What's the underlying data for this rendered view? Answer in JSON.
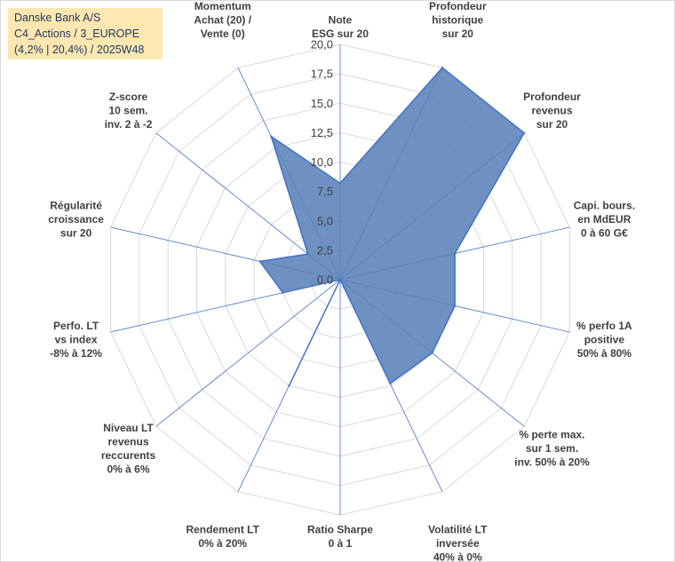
{
  "title": {
    "line1": "Danske Bank A/S",
    "line2": "C4_Actions / 3_EUROPE",
    "line3": "(4,2% | 20,4%) / 2025W48"
  },
  "colors": {
    "fill": "#5a82b8",
    "stroke": "#4472c4",
    "grid": "#d9d9d9",
    "spoke": "#4472c4",
    "title_bg": "#fde7b0"
  },
  "chart_data": {
    "type": "radar",
    "rmin": 0,
    "rmax": 20,
    "grid": true,
    "tick_labels": [
      "0,0",
      "2,5",
      "5,0",
      "7,5",
      "10,0",
      "12,5",
      "15,0",
      "17,5",
      "20,0"
    ],
    "axes": [
      [
        "Note",
        "ESG sur 20"
      ],
      [
        "Profondeur",
        "historique",
        "sur 20"
      ],
      [
        "Profondeur",
        "revenus",
        "sur 20"
      ],
      [
        "Capi. bours.",
        "en MdEUR",
        "0 à 60 G€"
      ],
      [
        "% perfo 1A",
        "positive",
        "50% à 80%"
      ],
      [
        "% perte max.",
        "sur 1 sem.",
        "inv. 50% à 20%"
      ],
      [
        "Volatilité LT",
        "inversée",
        "40% à 0%"
      ],
      [
        "Ratio Sharpe",
        "0 à 1"
      ],
      [
        "Rendement LT",
        "0% à 20%"
      ],
      [
        "Niveau LT",
        "revenus",
        "reccurents",
        "0% à 6%"
      ],
      [
        "Perfo. LT",
        "vs index",
        "-8% à 12%"
      ],
      [
        "Régularité",
        "croissance",
        "sur 20"
      ],
      [
        "Z-score",
        "10 sem.",
        "inv. 2 à -2"
      ],
      [
        "Momentum",
        "Achat (20) /",
        "Vente (0)"
      ]
    ],
    "values": [
      8.2,
      20,
      20,
      10,
      10,
      10,
      9.8,
      0,
      10,
      0,
      5,
      7,
      3.5,
      13.5
    ]
  }
}
